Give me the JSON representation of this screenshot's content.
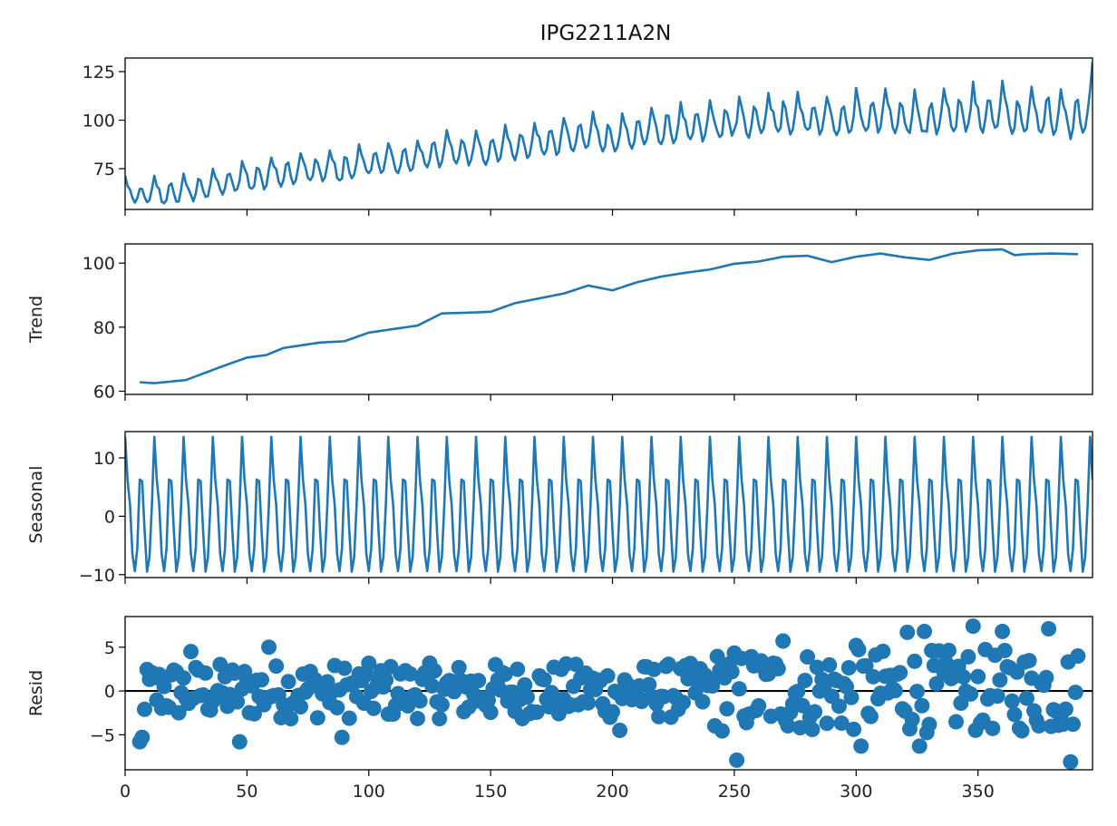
{
  "title": "IPG2211A2N",
  "series_color": "#1f77b4",
  "chart_data": {
    "type": "line",
    "title": "IPG2211A2N",
    "xlim": [
      0,
      397
    ],
    "x_ticks": [
      0,
      50,
      100,
      150,
      200,
      250,
      300,
      350
    ],
    "x_tick_labels": [
      "0",
      "50",
      "100",
      "150",
      "200",
      "250",
      "300",
      "350"
    ],
    "grid": false,
    "panels": [
      {
        "name": "observed",
        "ylabel": "",
        "type": "line",
        "ylim": [
          54,
          132
        ],
        "y_ticks": [
          75,
          100,
          125
        ],
        "y_tick_labels": [
          "75",
          "100",
          "125"
        ],
        "description": "Monthly observed values, x = 0..397; rising from ~60 to ~100 with a 12-month seasonal oscillation of growing amplitude; ends at ~130",
        "model": {
          "trend": "trend",
          "seasonal": "seasonal",
          "resid": "resid"
        }
      },
      {
        "name": "trend",
        "ylabel": "Trend",
        "type": "line",
        "ylim": [
          59,
          106
        ],
        "y_ticks": [
          60,
          80,
          100
        ],
        "y_tick_labels": [
          "60",
          "80",
          "100"
        ],
        "x_range": [
          6,
          391
        ],
        "keypoints": [
          [
            6,
            62.8
          ],
          [
            12,
            62.5
          ],
          [
            25,
            63.5
          ],
          [
            40,
            67.8
          ],
          [
            50,
            70.5
          ],
          [
            58,
            71.3
          ],
          [
            65,
            73.5
          ],
          [
            80,
            75.2
          ],
          [
            90,
            75.6
          ],
          [
            100,
            78.3
          ],
          [
            120,
            80.5
          ],
          [
            130,
            84.3
          ],
          [
            140,
            84.5
          ],
          [
            150,
            84.8
          ],
          [
            160,
            87.5
          ],
          [
            170,
            89.0
          ],
          [
            180,
            90.5
          ],
          [
            190,
            93.0
          ],
          [
            200,
            91.5
          ],
          [
            210,
            94.0
          ],
          [
            220,
            95.8
          ],
          [
            230,
            97.0
          ],
          [
            240,
            98.0
          ],
          [
            250,
            99.8
          ],
          [
            260,
            100.5
          ],
          [
            270,
            102.0
          ],
          [
            280,
            102.3
          ],
          [
            290,
            100.3
          ],
          [
            300,
            102.0
          ],
          [
            310,
            103.0
          ],
          [
            320,
            101.8
          ],
          [
            330,
            101.0
          ],
          [
            340,
            103.0
          ],
          [
            350,
            104.0
          ],
          [
            360,
            104.3
          ],
          [
            365,
            102.5
          ],
          [
            370,
            102.8
          ],
          [
            380,
            103.0
          ],
          [
            391,
            102.8
          ]
        ]
      },
      {
        "name": "seasonal",
        "ylabel": "Seasonal",
        "type": "line",
        "ylim": [
          -10.5,
          14.5
        ],
        "y_ticks": [
          -10,
          0,
          10
        ],
        "y_tick_labels": [
          "−10",
          "0",
          "10"
        ],
        "period": 12,
        "one_cycle": [
          13.6,
          6.2,
          2.0,
          -6.5,
          -9.4,
          -5.5,
          6.3,
          6.0,
          -2.5,
          -9.5,
          -7.0,
          2.0
        ]
      },
      {
        "name": "resid",
        "ylabel": "Resid",
        "type": "scatter",
        "ylim": [
          -9,
          8.5
        ],
        "y_ticks": [
          -5,
          0,
          5
        ],
        "y_tick_labels": [
          "−5",
          "0",
          "5"
        ],
        "zero_line": true,
        "x_range": [
          6,
          391
        ],
        "description": "Residual scatter roughly within ±4 for x < 240 and within about ±8 afterward",
        "notable_points": [
          [
            6,
            -5.8
          ],
          [
            7,
            -5.3
          ],
          [
            27,
            4.5
          ],
          [
            47,
            -5.8
          ],
          [
            59,
            5.0
          ],
          [
            89,
            -5.3
          ],
          [
            203,
            -4.5
          ],
          [
            251,
            -7.9
          ],
          [
            270,
            5.7
          ],
          [
            300,
            5.2
          ],
          [
            302,
            -6.3
          ],
          [
            321,
            6.7
          ],
          [
            326,
            -6.3
          ],
          [
            328,
            6.8
          ],
          [
            348,
            7.4
          ],
          [
            360,
            6.8
          ],
          [
            379,
            7.1
          ],
          [
            388,
            -8.1
          ]
        ]
      }
    ]
  }
}
